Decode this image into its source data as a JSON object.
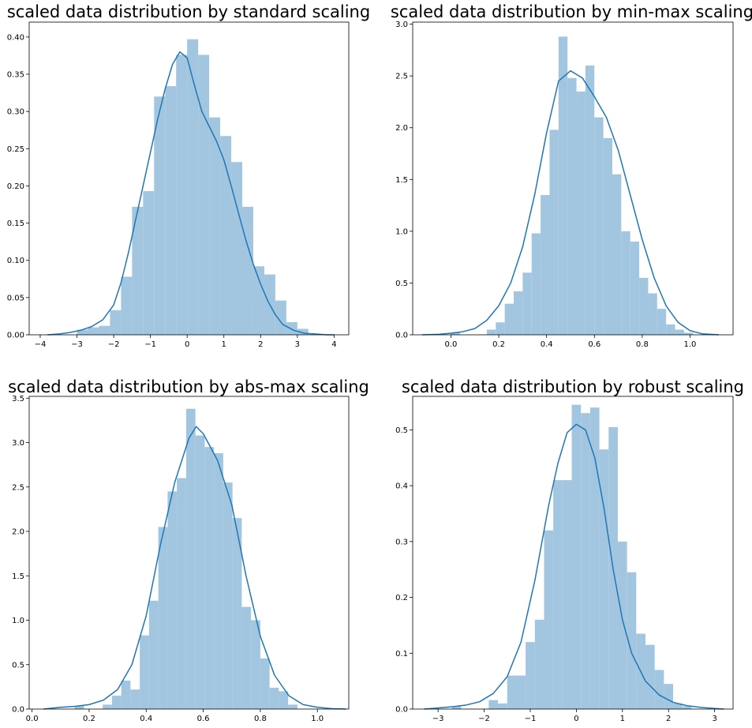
{
  "figure": {
    "background": "#ffffff"
  },
  "colors": {
    "bar": "#a3c6e0",
    "kde": "#1f77b4"
  },
  "chart_data": [
    {
      "type": "bar",
      "title": "scaled data distribution by standard scaling",
      "xlabel": "",
      "ylabel": "",
      "xlim": [
        -4.3,
        4.4
      ],
      "ylim": [
        0,
        0.42
      ],
      "x_ticks": [
        -4,
        -3,
        -2,
        -1,
        0,
        1,
        2,
        3,
        4
      ],
      "x_tick_labels": [
        "−4",
        "−3",
        "−2",
        "−1",
        "0",
        "1",
        "2",
        "3",
        "4"
      ],
      "y_ticks": [
        0,
        0.05,
        0.1,
        0.15,
        0.2,
        0.25,
        0.3,
        0.35,
        0.4
      ],
      "y_tick_labels": [
        "0.00",
        "0.05",
        "0.10",
        "0.15",
        "0.20",
        "0.25",
        "0.30",
        "0.35",
        "0.40"
      ],
      "bins": {
        "start": -3.0,
        "width": 0.3,
        "values": [
          0.007,
          0.01,
          0.012,
          0.033,
          0.078,
          0.172,
          0.193,
          0.32,
          0.334,
          0.376,
          0.397,
          0.376,
          0.292,
          0.267,
          0.232,
          0.172,
          0.092,
          0.081,
          0.046,
          0.017,
          0.008
        ]
      },
      "kde": {
        "x": [
          -3.8,
          -3.5,
          -3.2,
          -2.9,
          -2.6,
          -2.3,
          -2.0,
          -1.8,
          -1.6,
          -1.4,
          -1.2,
          -1.0,
          -0.8,
          -0.6,
          -0.4,
          -0.2,
          0.0,
          0.2,
          0.4,
          0.6,
          0.8,
          1.0,
          1.2,
          1.4,
          1.6,
          1.8,
          2.0,
          2.2,
          2.4,
          2.6,
          2.9,
          3.2,
          3.5,
          3.8,
          4.0
        ],
        "y": [
          0.0,
          0.001,
          0.003,
          0.006,
          0.011,
          0.02,
          0.04,
          0.07,
          0.11,
          0.155,
          0.2,
          0.245,
          0.29,
          0.33,
          0.363,
          0.38,
          0.372,
          0.335,
          0.3,
          0.28,
          0.26,
          0.235,
          0.2,
          0.163,
          0.127,
          0.095,
          0.068,
          0.045,
          0.027,
          0.014,
          0.006,
          0.002,
          0.001,
          0.0,
          0.0
        ]
      }
    },
    {
      "type": "bar",
      "title": "scaled data distribution by min-max scaling",
      "xlabel": "",
      "ylabel": "",
      "xlim": [
        -0.16,
        1.18
      ],
      "ylim": [
        0,
        3.02
      ],
      "x_ticks": [
        0.0,
        0.2,
        0.4,
        0.6,
        0.8,
        1.0
      ],
      "x_tick_labels": [
        "0.0",
        "0.2",
        "0.4",
        "0.6",
        "0.8",
        "1.0"
      ],
      "y_ticks": [
        0,
        0.5,
        1.0,
        1.5,
        2.0,
        2.5,
        3.0
      ],
      "y_tick_labels": [
        "0.0",
        "0.5",
        "1.0",
        "1.5",
        "2.0",
        "2.5",
        "3.0"
      ],
      "bins": {
        "start": 0.0,
        "width": 0.0375,
        "values": [
          0.02,
          0.0,
          0.0,
          0.0,
          0.05,
          0.12,
          0.3,
          0.42,
          0.6,
          0.98,
          1.35,
          1.98,
          2.88,
          2.48,
          2.35,
          2.6,
          2.1,
          1.9,
          1.55,
          1.0,
          0.9,
          0.55,
          0.4,
          0.25,
          0.1,
          0.05,
          0.02
        ]
      },
      "kde": {
        "x": [
          -0.12,
          -0.05,
          0.0,
          0.05,
          0.1,
          0.15,
          0.2,
          0.25,
          0.3,
          0.35,
          0.4,
          0.45,
          0.5,
          0.55,
          0.6,
          0.65,
          0.7,
          0.75,
          0.8,
          0.85,
          0.9,
          0.95,
          1.0,
          1.05,
          1.1,
          1.12
        ],
        "y": [
          0.0,
          0.005,
          0.015,
          0.03,
          0.06,
          0.14,
          0.28,
          0.5,
          0.85,
          1.35,
          1.95,
          2.45,
          2.55,
          2.48,
          2.3,
          2.1,
          1.78,
          1.35,
          0.92,
          0.55,
          0.28,
          0.12,
          0.04,
          0.01,
          0.003,
          0.0
        ]
      }
    },
    {
      "type": "bar",
      "title": "scaled data distribution by abs-max scaling",
      "xlabel": "",
      "ylabel": "",
      "xlim": [
        -0.01,
        1.11
      ],
      "ylim": [
        0,
        3.52
      ],
      "x_ticks": [
        0.0,
        0.2,
        0.4,
        0.6,
        0.8,
        1.0
      ],
      "x_tick_labels": [
        "0.0",
        "0.2",
        "0.4",
        "0.6",
        "0.8",
        "1.0"
      ],
      "y_ticks": [
        0,
        0.5,
        1.0,
        1.5,
        2.0,
        2.5,
        3.0,
        3.5
      ],
      "y_tick_labels": [
        "0.0",
        "0.5",
        "1.0",
        "1.5",
        "2.0",
        "2.5",
        "3.0",
        "3.5"
      ],
      "bins": {
        "start": 0.15,
        "width": 0.0325,
        "values": [
          0.04,
          0.0,
          0.0,
          0.05,
          0.15,
          0.32,
          0.22,
          0.83,
          1.22,
          2.05,
          2.45,
          2.6,
          3.38,
          3.08,
          2.95,
          2.88,
          2.55,
          2.15,
          1.15,
          1.0,
          0.57,
          0.24,
          0.2,
          0.05
        ]
      },
      "kde": {
        "x": [
          0.04,
          0.1,
          0.15,
          0.2,
          0.25,
          0.3,
          0.35,
          0.4,
          0.45,
          0.5,
          0.55,
          0.575,
          0.6,
          0.65,
          0.7,
          0.75,
          0.8,
          0.85,
          0.9,
          0.95,
          1.0,
          1.05,
          1.1
        ],
        "y": [
          0.0,
          0.02,
          0.03,
          0.05,
          0.1,
          0.22,
          0.5,
          1.05,
          1.85,
          2.55,
          3.05,
          3.18,
          3.1,
          2.8,
          2.3,
          1.5,
          0.82,
          0.38,
          0.15,
          0.05,
          0.02,
          0.005,
          0.0
        ]
      }
    },
    {
      "type": "bar",
      "title": "scaled data distribution by robust scaling",
      "xlabel": "",
      "ylabel": "",
      "xlim": [
        -3.55,
        3.4
      ],
      "ylim": [
        0,
        0.56
      ],
      "x_ticks": [
        -3,
        -2,
        -1,
        0,
        1,
        2,
        3
      ],
      "x_tick_labels": [
        "−3",
        "−2",
        "−1",
        "0",
        "1",
        "2",
        "3"
      ],
      "y_ticks": [
        0,
        0.1,
        0.2,
        0.3,
        0.4,
        0.5
      ],
      "y_tick_labels": [
        "0.0",
        "0.1",
        "0.2",
        "0.3",
        "0.4",
        "0.5"
      ],
      "bins": {
        "start": -2.7,
        "width": 0.2,
        "values": [
          0.005,
          0.0,
          0.0,
          0.0,
          0.016,
          0.01,
          0.06,
          0.06,
          0.12,
          0.16,
          0.32,
          0.41,
          0.41,
          0.545,
          0.53,
          0.54,
          0.465,
          0.505,
          0.3,
          0.245,
          0.135,
          0.115,
          0.07,
          0.045,
          0.01,
          0.005
        ]
      },
      "kde": {
        "x": [
          -3.3,
          -3.0,
          -2.7,
          -2.4,
          -2.1,
          -1.8,
          -1.5,
          -1.2,
          -0.9,
          -0.6,
          -0.4,
          -0.2,
          0.0,
          0.2,
          0.4,
          0.6,
          0.8,
          1.0,
          1.2,
          1.5,
          1.8,
          2.1,
          2.4,
          2.7,
          3.0,
          3.2
        ],
        "y": [
          0.0,
          0.002,
          0.004,
          0.007,
          0.013,
          0.028,
          0.058,
          0.12,
          0.23,
          0.365,
          0.44,
          0.495,
          0.51,
          0.5,
          0.45,
          0.36,
          0.25,
          0.16,
          0.1,
          0.05,
          0.025,
          0.012,
          0.006,
          0.003,
          0.001,
          0.0
        ]
      }
    }
  ]
}
